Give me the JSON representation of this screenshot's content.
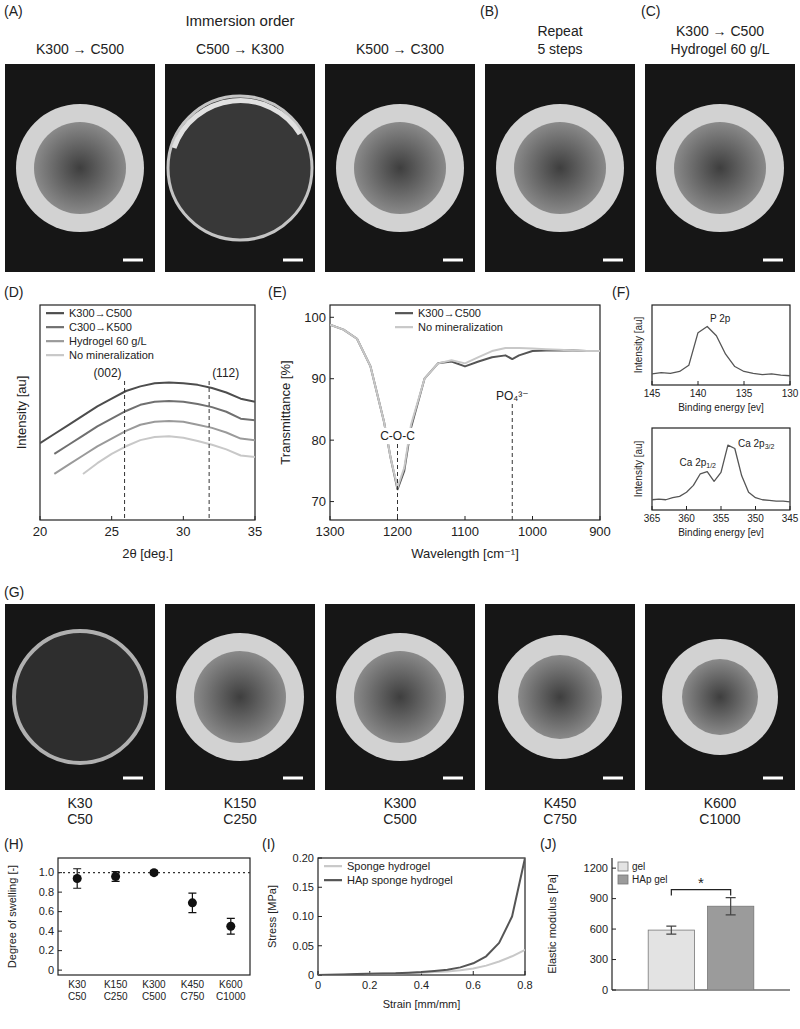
{
  "photos": {
    "groups": [
      {
        "panel": "(A)",
        "title": "Immersion order",
        "items": [
          {
            "label": [
              "K300 → C500"
            ]
          },
          {
            "label": [
              "C500 → K300"
            ]
          },
          {
            "label": [
              "K500 → C300"
            ]
          }
        ]
      },
      {
        "panel": "(B)",
        "items": [
          {
            "label": [
              "Repeat",
              "5 steps"
            ]
          }
        ]
      },
      {
        "panel": "(C)",
        "items": [
          {
            "label": [
              "K300 → C500",
              "Hydrogel 60 g/L"
            ]
          }
        ]
      },
      {
        "panel": "(G)",
        "items": [
          {
            "label": [
              "K30",
              "C50"
            ]
          },
          {
            "label": [
              "K150",
              "C250"
            ]
          },
          {
            "label": [
              "K300",
              "C500"
            ]
          },
          {
            "label": [
              "K450",
              "C750"
            ]
          },
          {
            "label": [
              "K600",
              "C1000"
            ]
          }
        ]
      }
    ]
  },
  "chart_data": [
    {
      "panel": "(D)",
      "type": "line",
      "x_label": "2θ [deg.]",
      "y_label": "Intensity [au]",
      "x": [
        20,
        21,
        22,
        23,
        24,
        25,
        26,
        27,
        28,
        29,
        30,
        31,
        32,
        33,
        34,
        35
      ],
      "xlim": [
        20,
        35
      ],
      "xticks": [
        20,
        25,
        30,
        35
      ],
      "ylim": [
        0,
        14
      ],
      "tick_labels": "x",
      "legend": "upper left",
      "series": [
        {
          "name": "K300→C500",
          "color": "#4d4d4d",
          "values": [
            5.0,
            5.6,
            6.2,
            6.8,
            7.4,
            7.9,
            8.4,
            8.7,
            8.9,
            8.95,
            8.9,
            8.8,
            8.6,
            8.3,
            7.9,
            7.7
          ]
        },
        {
          "name": "C300→K500",
          "color": "#707070",
          "values": [
            null,
            4.3,
            4.9,
            5.5,
            6.1,
            6.6,
            7.1,
            7.5,
            7.7,
            7.75,
            7.7,
            7.55,
            7.35,
            7.05,
            6.6,
            6.5
          ]
        },
        {
          "name": "Hydrogel 60 g/L",
          "color": "#9a9a9a",
          "values": [
            null,
            3.0,
            3.6,
            4.2,
            4.8,
            5.3,
            5.8,
            6.2,
            6.4,
            6.45,
            6.4,
            6.2,
            6.0,
            5.7,
            5.3,
            5.2
          ]
        },
        {
          "name": "No mineralization",
          "color": "#c8c8c8",
          "values": [
            null,
            null,
            null,
            3.0,
            3.7,
            4.3,
            4.8,
            5.2,
            5.4,
            5.45,
            5.35,
            5.15,
            4.9,
            4.6,
            4.2,
            4.1
          ]
        }
      ],
      "annotations": [
        {
          "text": "(002)",
          "x": 25.9
        },
        {
          "text": "(112)",
          "x": 31.8
        }
      ]
    },
    {
      "panel": "(E)",
      "type": "line",
      "x_label": "Wavelength [cm⁻¹]",
      "y_label": "Transmittance [%]",
      "x": [
        1300,
        1280,
        1260,
        1240,
        1220,
        1210,
        1200,
        1190,
        1180,
        1160,
        1140,
        1120,
        1100,
        1080,
        1060,
        1040,
        1030,
        1020,
        1000,
        980,
        960,
        940,
        920,
        900
      ],
      "xlim": [
        1300,
        900
      ],
      "xticks": [
        1300,
        1200,
        1100,
        1000,
        900
      ],
      "ylim": [
        67,
        102
      ],
      "yticks": [
        70,
        80,
        90,
        100
      ],
      "legend": "upper center",
      "series": [
        {
          "name": "K300→C500",
          "color": "#555555",
          "values": [
            98.8,
            98,
            96.5,
            92,
            83,
            77,
            72,
            75,
            82,
            90,
            92.5,
            92.8,
            92,
            92.8,
            93.5,
            93.8,
            93.2,
            93.8,
            94.5,
            94.6,
            94.6,
            94.6,
            94.5,
            94.5
          ]
        },
        {
          "name": "No mineralization",
          "color": "#c8c8c8",
          "values": [
            98.8,
            98,
            96.5,
            92,
            83,
            77,
            72.3,
            75.5,
            82.5,
            90,
            92.5,
            93,
            92.5,
            93.5,
            94.5,
            95,
            95,
            95,
            94.9,
            94.8,
            94.7,
            94.6,
            94.5,
            94.5
          ]
        }
      ],
      "annotations": [
        {
          "text": "C-O-C",
          "x": 1200
        },
        {
          "text": "PO₄³⁻",
          "x": 1030
        }
      ]
    },
    {
      "panel": "(F)",
      "type": "line",
      "x_label": "Binding energy [ev]",
      "y_label": "Intensity [au]",
      "x": [
        145,
        144,
        143,
        142,
        141,
        140,
        139,
        138,
        137,
        136,
        135,
        134,
        133,
        132,
        131,
        130
      ],
      "xlim": [
        145,
        130
      ],
      "xticks": [
        145,
        140,
        135,
        130
      ],
      "ylim": [
        0,
        13
      ],
      "tick_labels": "x",
      "series": [
        {
          "color": "#555555",
          "values": [
            1.8,
            2.0,
            1.9,
            2.2,
            3.2,
            8.5,
            9.5,
            8.0,
            5.0,
            3.0,
            2.2,
            1.9,
            1.7,
            1.8,
            1.6,
            1.5
          ]
        }
      ],
      "annotations": [
        {
          "text": "P 2p"
        }
      ]
    },
    {
      "type": "line",
      "x_label": "Binding energy [ev]",
      "y_label": "Intensity [au]",
      "x": [
        365,
        364,
        363,
        362,
        361,
        360,
        359,
        358,
        357,
        356,
        355,
        354,
        353,
        352,
        351,
        350,
        349,
        348,
        347,
        346,
        345
      ],
      "xlim": [
        365,
        345
      ],
      "xticks": [
        365,
        360,
        355,
        350,
        345
      ],
      "ylim": [
        0,
        12
      ],
      "tick_labels": "x",
      "series": [
        {
          "color": "#555555",
          "values": [
            1.5,
            1.6,
            1.5,
            1.8,
            2.0,
            2.6,
            3.6,
            5.3,
            5.6,
            4.2,
            5.5,
            9.5,
            9.0,
            5.0,
            2.6,
            1.8,
            1.5,
            1.4,
            1.3,
            1.3,
            1.2
          ]
        }
      ],
      "annotations": [
        {
          "text": "Ca 2p",
          "sub": "1/2"
        },
        {
          "text": "Ca 2p",
          "sub": "3/2"
        }
      ]
    },
    {
      "panel": "(H)",
      "type": "scatter",
      "y_label": "Degree of swelling [-]",
      "categories": [
        "K30 C50",
        "K150 C250",
        "K300 C500",
        "K450 C750",
        "K600 C1000"
      ],
      "values": [
        0.94,
        0.96,
        1.0,
        0.69,
        0.45
      ],
      "errors": [
        0.1,
        0.05,
        0.02,
        0.1,
        0.08
      ],
      "ylim": [
        -0.05,
        1.15
      ],
      "yticks": [
        0,
        0.2,
        0.4,
        0.6,
        0.8,
        {
          "value": 1,
          "label": "1.0"
        }
      ],
      "reference_line": 1,
      "color": "#111111",
      "marker": "circle"
    },
    {
      "panel": "(I)",
      "type": "line",
      "x_label": "Strain [mm/mm]",
      "y_label": "Stress [MPa]",
      "x": [
        0,
        0.05,
        0.1,
        0.15,
        0.2,
        0.25,
        0.3,
        0.35,
        0.4,
        0.45,
        0.5,
        0.55,
        0.6,
        0.65,
        0.7,
        0.75,
        0.8
      ],
      "xlim": [
        0,
        0.8
      ],
      "xticks": [
        0,
        0.2,
        0.4,
        0.6,
        0.8
      ],
      "ylim": [
        0,
        0.2
      ],
      "yticks": [
        0,
        0.05,
        {
          "value": 0.1,
          "label": "0.10"
        },
        0.15,
        {
          "value": 0.2,
          "label": "0.20"
        }
      ],
      "legend": "upper left",
      "series": [
        {
          "name": "Sponge hydrogel",
          "color": "#c8c8c8",
          "values": [
            0,
            0.0005,
            0.001,
            0.0015,
            0.002,
            0.0025,
            0.003,
            0.0035,
            0.004,
            0.005,
            0.006,
            0.008,
            0.011,
            0.016,
            0.023,
            0.032,
            0.043
          ]
        },
        {
          "name": "HAp sponge hydrogel",
          "color": "#555555",
          "values": [
            0,
            0.0005,
            0.001,
            0.0015,
            0.002,
            0.0025,
            0.003,
            0.004,
            0.005,
            0.007,
            0.009,
            0.013,
            0.02,
            0.032,
            0.055,
            0.1,
            0.2
          ]
        }
      ]
    },
    {
      "panel": "(J)",
      "type": "bar",
      "y_label": "Elastic modulus [Pa]",
      "categories": [
        null
      ],
      "ylim": [
        0,
        1300
      ],
      "yticks": [
        0,
        300,
        600,
        900,
        1200
      ],
      "tick_labels": "y",
      "legend": "upper left",
      "series": [
        {
          "name": "gel",
          "color": "#e3e3e3",
          "values": [
            590
          ],
          "errors": [
            40
          ]
        },
        {
          "name": "HAp gel",
          "color": "#9b9b9b",
          "values": [
            825
          ],
          "errors": [
            85
          ]
        }
      ],
      "annotations": [
        {
          "text": "*"
        }
      ]
    }
  ]
}
